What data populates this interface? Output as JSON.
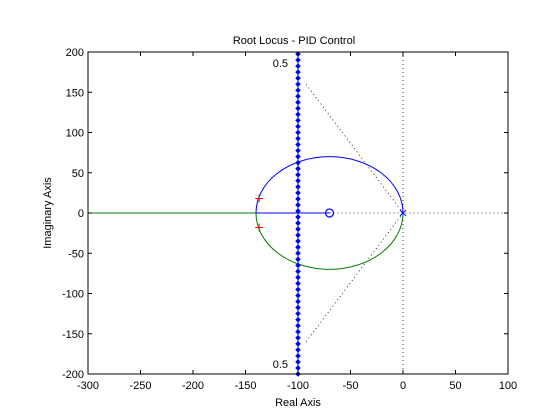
{
  "chart_data": {
    "type": "line",
    "title": "Root Locus - PID Control",
    "xlabel": "Real Axis",
    "ylabel": "Imaginary Axis",
    "xlim": [
      -300,
      100
    ],
    "ylim": [
      -200,
      200
    ],
    "xticks": [
      -300,
      -250,
      -200,
      -150,
      -100,
      -50,
      0,
      50,
      100
    ],
    "yticks": [
      -200,
      -150,
      -100,
      -50,
      0,
      50,
      100,
      150,
      200
    ],
    "grid": false,
    "colors": {
      "upper_branch": "#0000ff",
      "lower_branch": "#008000",
      "pole_marker": "#ff0000",
      "zero_marker": "#0000ff",
      "design_line": "#0000ff",
      "guide_lines": "#000000",
      "axes": "#000000"
    },
    "branch_real_axis_blue": {
      "x": [
        -140,
        -70
      ],
      "y": [
        0,
        0
      ]
    },
    "branch_real_axis_green": {
      "x": [
        -300,
        -140
      ],
      "y": [
        0,
        0
      ]
    },
    "branch_circle": {
      "center": [
        -70,
        0
      ],
      "radius_x": 70,
      "radius_y": 70,
      "upper_color": "blue",
      "lower_color": "green"
    },
    "poles": [
      {
        "x": -137,
        "y": 18
      },
      {
        "x": -137,
        "y": -18
      }
    ],
    "zeros": [
      {
        "x": -70,
        "y": 0
      }
    ],
    "origin_pole": {
      "x": 0,
      "y": 0
    },
    "design_line": {
      "x": -100,
      "ymin": -200,
      "ymax": 200,
      "marker": "diamond"
    },
    "damping_guides": {
      "label_top": "0.5",
      "label_bottom": "0.5",
      "zeta": 0.5,
      "vertical_at": 0,
      "horizontal_at": 0
    }
  }
}
